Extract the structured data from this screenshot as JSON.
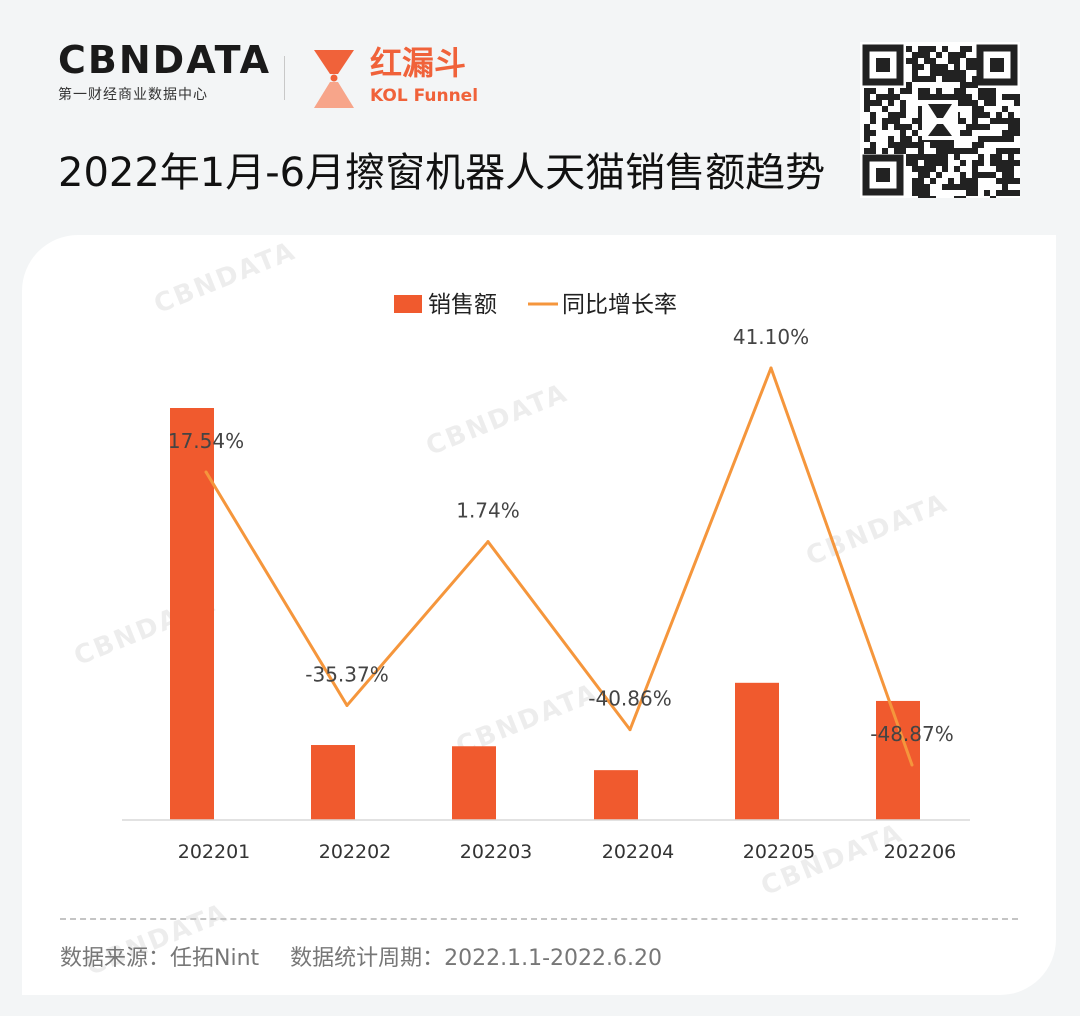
{
  "brand": {
    "cbn_logo_text": "CBNDATA",
    "cbn_subtitle": "第一财经商业数据中心",
    "kol_cn": "红漏斗",
    "kol_en": "KOL Funnel"
  },
  "title": "2022年1月-6月擦窗机器人天猫销售额趋势",
  "watermark_text": "CBNDATA",
  "colors": {
    "bar": "#f05a2e",
    "line": "#f5963c",
    "accent": "#f0623a"
  },
  "chart_data": {
    "type": "bar",
    "categories": [
      "202201",
      "202202",
      "202203",
      "202204",
      "202205",
      "202206"
    ],
    "series": [
      {
        "name": "销售额",
        "type": "bar",
        "values": [
          100,
          18.2,
          17.9,
          12.1,
          33.3,
          28.9
        ]
      },
      {
        "name": "同比增长率",
        "type": "line",
        "values": [
          17.54,
          -35.37,
          1.74,
          -40.86,
          41.1,
          -48.87
        ]
      }
    ],
    "line_labels": [
      "17.54%",
      "-35.37%",
      "1.74%",
      "-40.86%",
      "41.10%",
      "-48.87%"
    ],
    "legend_position": "top-center",
    "grid": false,
    "bar_axis_visible": false,
    "line_axis_visible": false
  },
  "footer": {
    "source": "数据来源：任拓Nint",
    "period": "数据统计周期：2022.1.1-2022.6.20"
  }
}
